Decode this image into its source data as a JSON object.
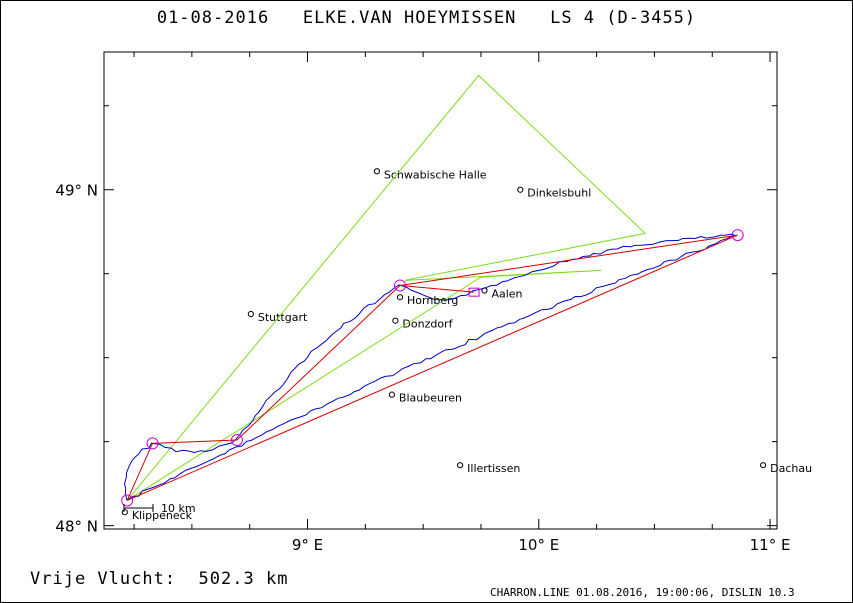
{
  "header": {
    "date": "01-08-2016",
    "pilot": "ELKE.VAN HOEYMISSEN",
    "class": "LS 4 (D-3455)"
  },
  "map": {
    "lon_range": [
      8.12,
      11.03
    ],
    "lat_range": [
      47.99,
      49.41
    ],
    "x_ticks": [
      {
        "lon": 9.0,
        "label": "9° E"
      },
      {
        "lon": 10.0,
        "label": "10° E"
      },
      {
        "lon": 11.0,
        "label": "11° E"
      }
    ],
    "y_ticks": [
      {
        "lat": 48.0,
        "label": "48° N"
      },
      {
        "lat": 49.0,
        "label": "49° N"
      }
    ],
    "cities": [
      {
        "name": "Schwabische Halle",
        "lon": 9.3,
        "lat": 49.055
      },
      {
        "name": "Dinkelsbuhl",
        "lon": 9.92,
        "lat": 49.0
      },
      {
        "name": "Stuttgart",
        "lon": 8.755,
        "lat": 48.63
      },
      {
        "name": "Aalen",
        "lon": 9.765,
        "lat": 48.7
      },
      {
        "name": "Hornberg",
        "lon": 9.4,
        "lat": 48.68
      },
      {
        "name": "Donzdorf",
        "lon": 9.38,
        "lat": 48.61
      },
      {
        "name": "Blaubeuren",
        "lon": 9.365,
        "lat": 48.39
      },
      {
        "name": "Illertissen",
        "lon": 9.66,
        "lat": 48.18
      },
      {
        "name": "Dachau",
        "lon": 10.97,
        "lat": 48.18
      },
      {
        "name": "Klippeneck",
        "lon": 8.21,
        "lat": 48.04
      }
    ],
    "turnpoints": [
      {
        "lon": 8.22,
        "lat": 48.075
      },
      {
        "lon": 8.33,
        "lat": 48.245
      },
      {
        "lon": 8.695,
        "lat": 48.255
      },
      {
        "lon": 9.4,
        "lat": 48.715
      },
      {
        "lon": 10.86,
        "lat": 48.865
      },
      {
        "lon": 9.72,
        "lat": 48.695
      }
    ],
    "scale_label": "10 km",
    "colors": {
      "track": "#0000cc",
      "task": "#d40000",
      "optimized": "#7fdc1a",
      "turnpoint": "#d000d0"
    }
  },
  "footer": {
    "distance_label": "Vrije Vlucht:",
    "distance_value": "502.3 km",
    "credits": "CHARRON.LINE 01.08.2016, 19:00:06, DISLIN 10.3"
  }
}
